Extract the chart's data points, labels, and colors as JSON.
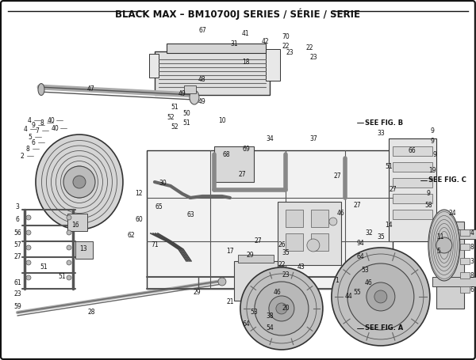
{
  "title": "BLACK MAX – BM10700J SERIES / SÉRIE / SERIE",
  "bg_color": "#f0f0f0",
  "inner_bg": "#ffffff",
  "border_color": "#111111",
  "text_color": "#111111",
  "fig_width": 6.0,
  "fig_height": 4.55,
  "dpi": 100,
  "title_fontsize": 8.5,
  "label_fontsize": 5.5,
  "see_fig_a": "SEE FIG. A",
  "see_fig_b": "SEE FIG. B",
  "see_fig_c": "SEE FIG. C"
}
